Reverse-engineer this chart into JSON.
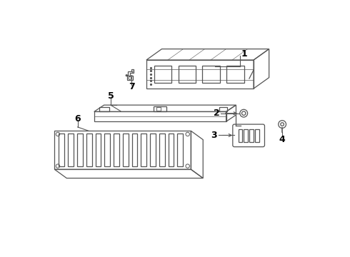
{
  "bg_color": "#ffffff",
  "line_color": "#555555",
  "label_color": "#000000",
  "lw": 0.9
}
